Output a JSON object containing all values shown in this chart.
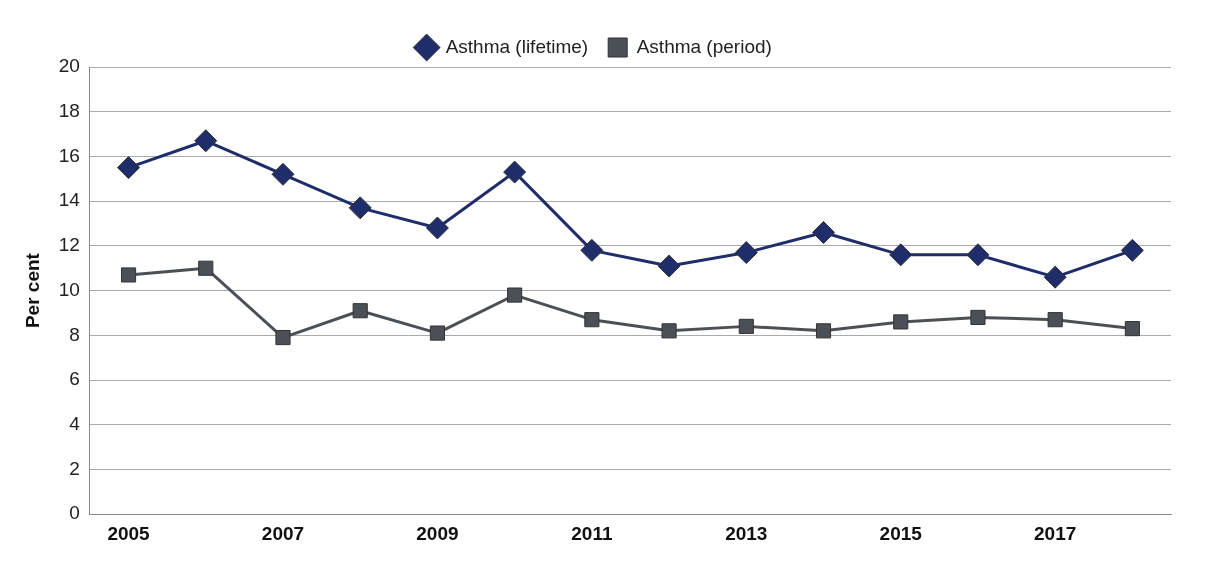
{
  "chart_data": {
    "type": "line",
    "ylabel": "Per cent",
    "categories": [
      "2005",
      null,
      "2007",
      null,
      "2009",
      null,
      "2011",
      null,
      "2013",
      null,
      "2015",
      null,
      "2017",
      null
    ],
    "series": [
      {
        "name": "Asthma (lifetime)",
        "color": "#1f2d6b",
        "marker": "diamond",
        "values": [
          15.5,
          16.7,
          15.2,
          13.7,
          12.8,
          15.3,
          11.8,
          11.1,
          11.7,
          12.6,
          11.6,
          11.6,
          10.6,
          11.8
        ]
      },
      {
        "name": "Asthma (period)",
        "color": "#4b5057",
        "marker": "square",
        "values": [
          10.7,
          11.0,
          7.9,
          9.1,
          8.1,
          9.8,
          8.7,
          8.2,
          8.4,
          8.2,
          8.6,
          8.8,
          8.7,
          8.3
        ]
      }
    ],
    "ylim": [
      0,
      20
    ],
    "yticks": [
      0,
      2,
      4,
      6,
      8,
      10,
      12,
      14,
      16,
      18,
      20
    ],
    "grid": "y",
    "legend": "top",
    "line_style": "solid"
  }
}
